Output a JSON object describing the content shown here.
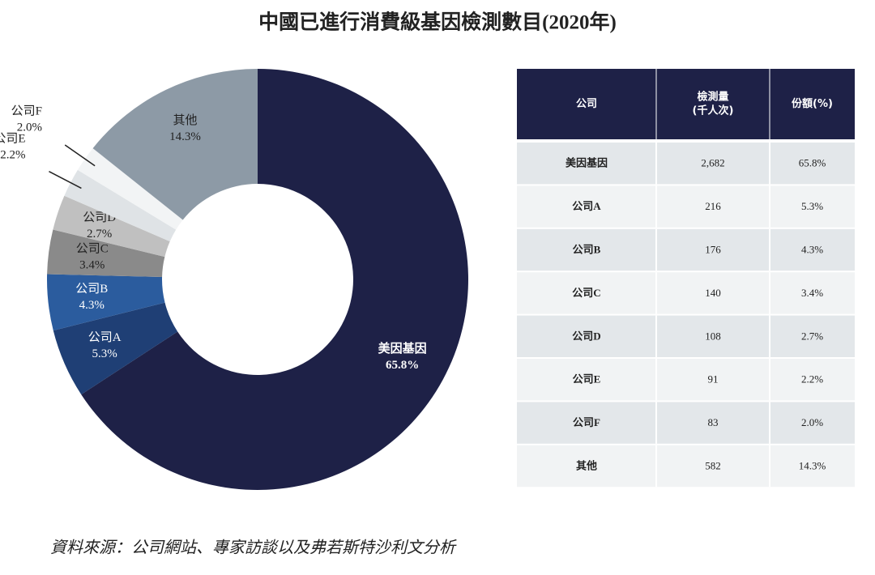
{
  "chart_data": {
    "type": "pie",
    "donut": true,
    "title": "中國已進行消費級基因檢測數目(2020年)",
    "categories": [
      "美因基因",
      "公司A",
      "公司B",
      "公司C",
      "公司D",
      "公司E",
      "公司F",
      "其他"
    ],
    "values": [
      65.8,
      5.3,
      4.3,
      3.4,
      2.7,
      2.2,
      2.0,
      14.3
    ],
    "value_labels": [
      "65.8%",
      "5.3%",
      "4.3%",
      "3.4%",
      "2.7%",
      "2.2%",
      "2.0%",
      "14.3%"
    ],
    "colors": [
      "#1e2147",
      "#1f3f75",
      "#2b5c9e",
      "#8a8a8a",
      "#c0c0c0",
      "#dfe3e6",
      "#f2f4f5",
      "#8d9aa6"
    ]
  },
  "table": {
    "header": [
      [
        "公司"
      ],
      [
        "檢測量",
        "(千人次)"
      ],
      [
        "份額(%)"
      ]
    ],
    "rows": [
      [
        "美因基因",
        "2,682",
        "65.8%"
      ],
      [
        "公司A",
        "216",
        "5.3%"
      ],
      [
        "公司B",
        "176",
        "4.3%"
      ],
      [
        "公司C",
        "140",
        "3.4%"
      ],
      [
        "公司D",
        "108",
        "2.7%"
      ],
      [
        "公司E",
        "91",
        "2.2%"
      ],
      [
        "公司F",
        "83",
        "2.0%"
      ],
      [
        "其他",
        "582",
        "14.3%"
      ]
    ]
  },
  "source": "資料來源：公司網站、專家訪談以及弗若斯特沙利文分析"
}
